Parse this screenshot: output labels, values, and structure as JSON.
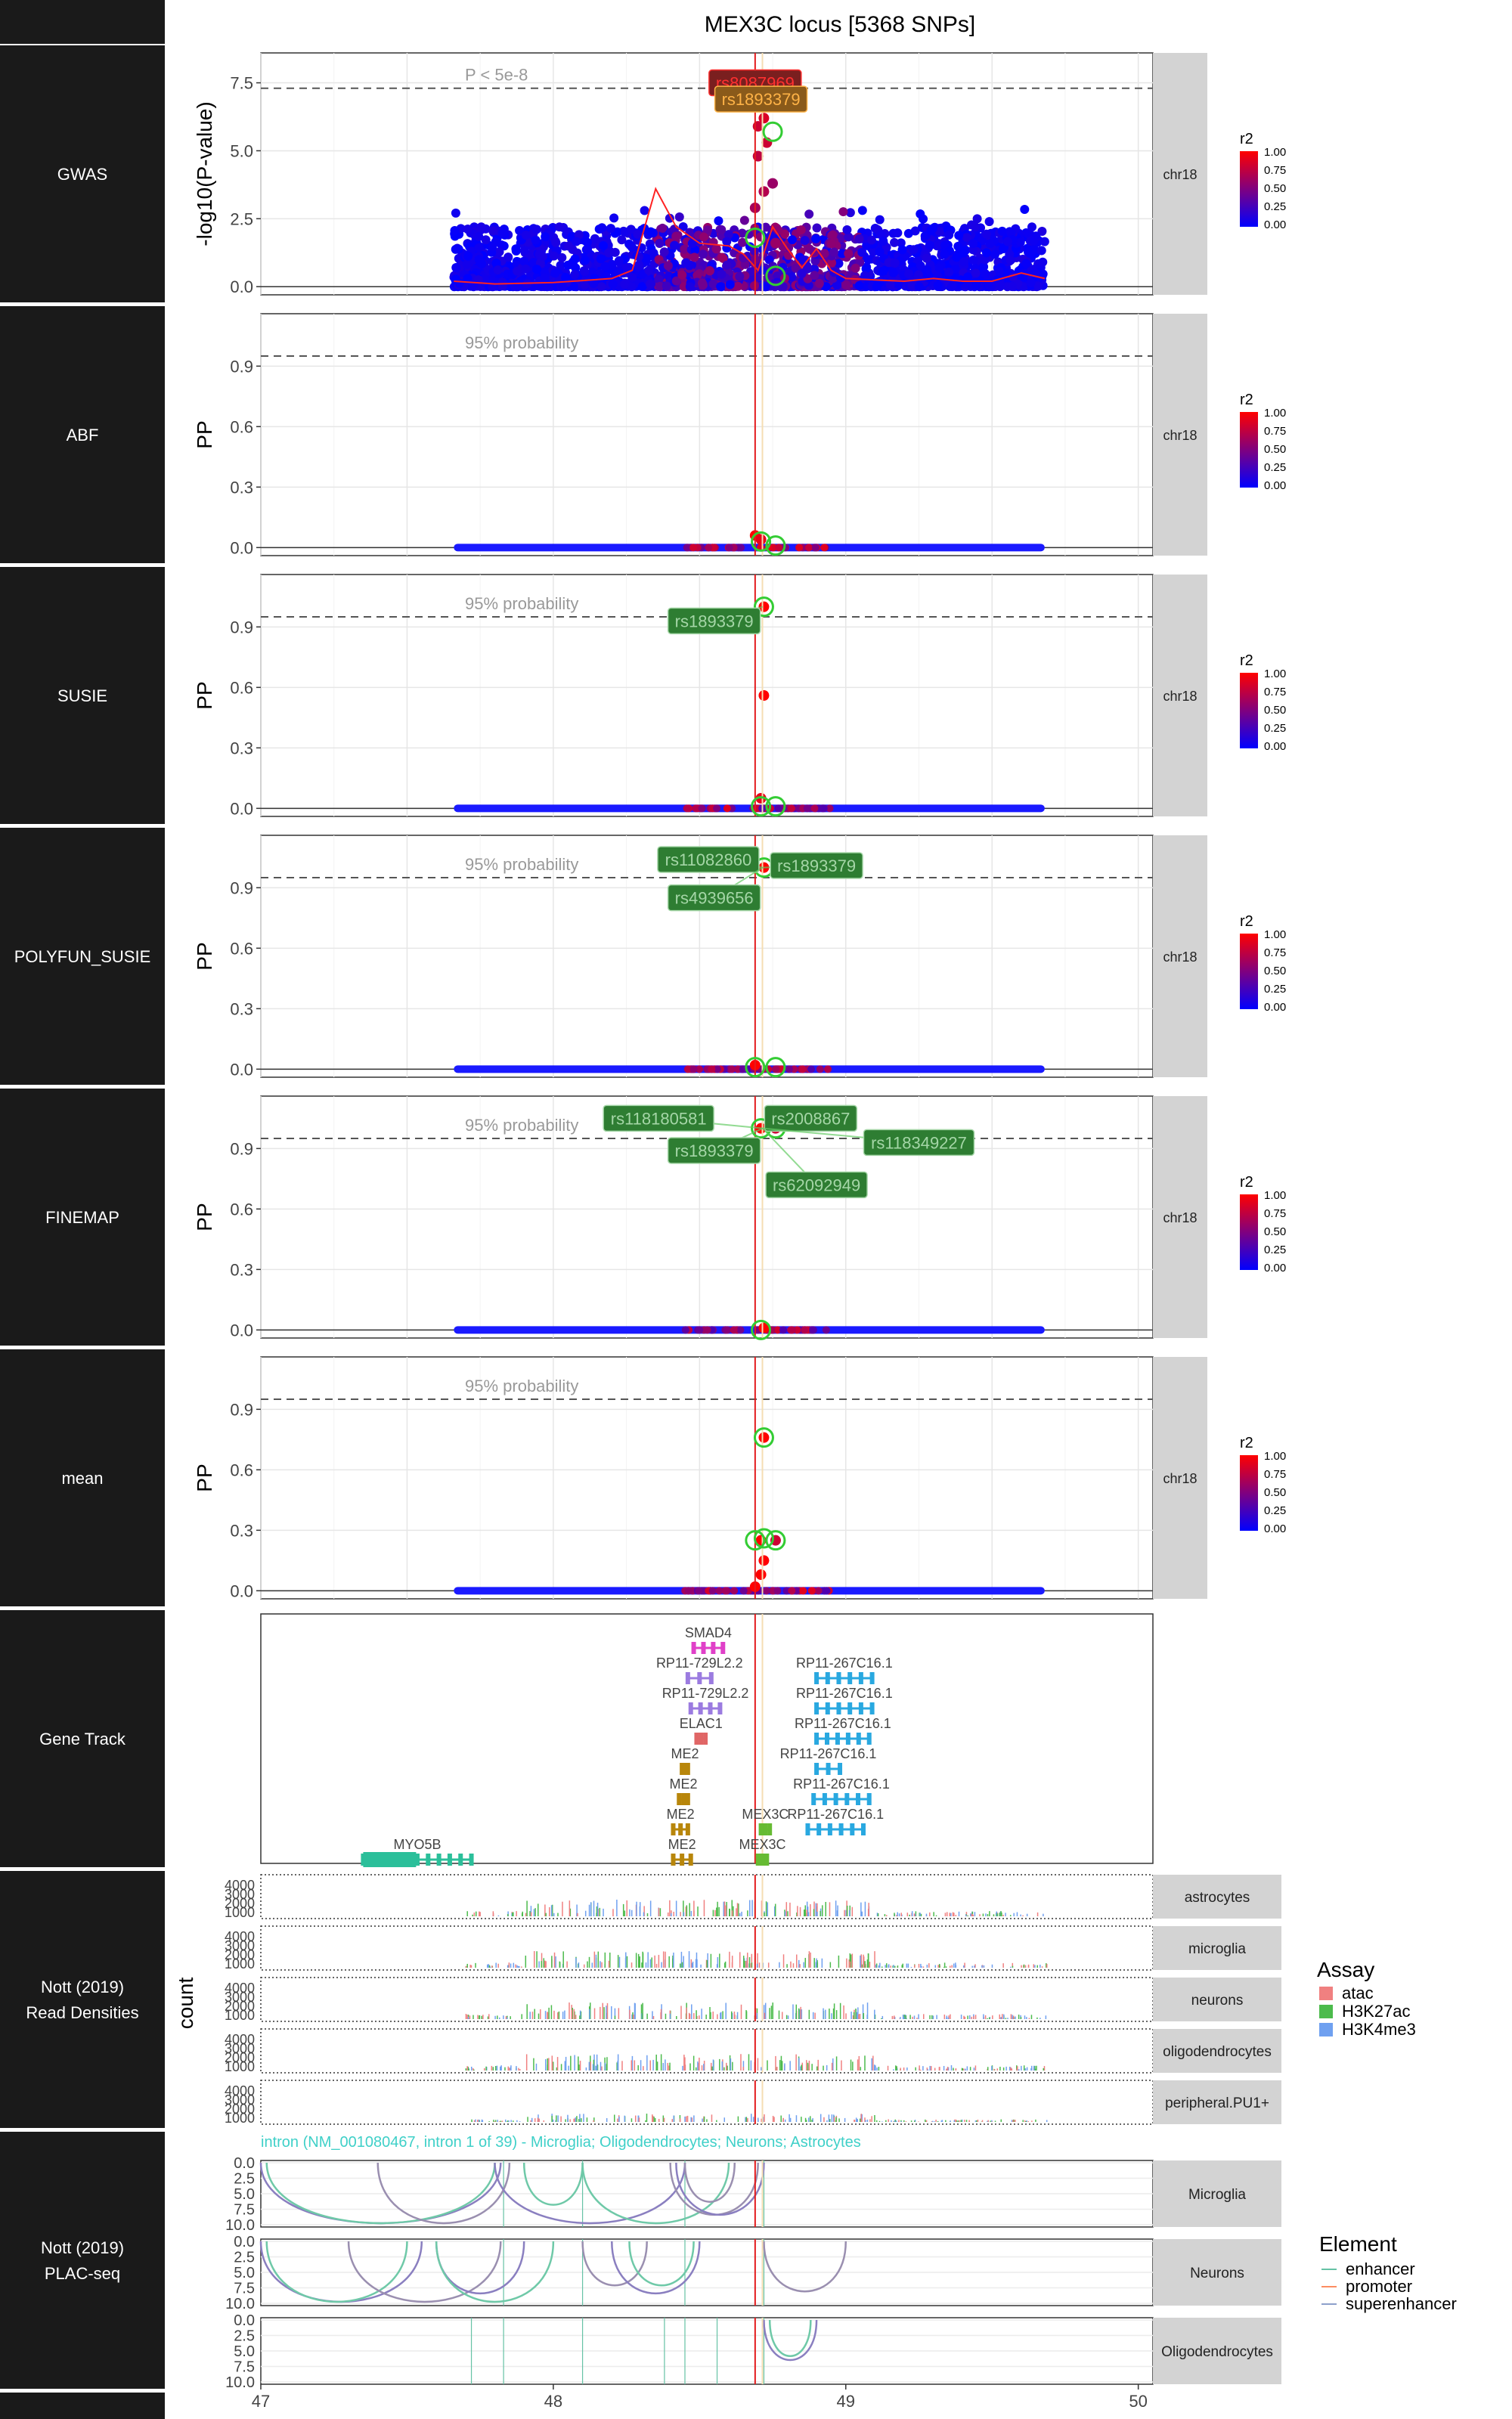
{
  "title": "MEX3C locus [5368 SNPs]",
  "colors": {
    "row_label_bg": "#1a1a1a",
    "row_label_text": "#ffffff",
    "strip_bg": "#d3d3d3",
    "lead_line": "#e31a1c",
    "consensus_line": "#f5deb3",
    "snp_low": "#0000ff",
    "snp_high": "#ff0000",
    "label_fill": "#2e7d32",
    "label_text": "#a5d6a7",
    "circle": "#33cc33"
  },
  "rows": [
    {
      "id": "gwas",
      "label": "GWAS"
    },
    {
      "id": "abf",
      "label": "ABF"
    },
    {
      "id": "susie",
      "label": "SUSIE"
    },
    {
      "id": "polyfun",
      "label": "POLYFUN_SUSIE"
    },
    {
      "id": "finemap",
      "label": "FINEMAP"
    },
    {
      "id": "mean",
      "label": "mean"
    },
    {
      "id": "genes",
      "label": "Gene Track"
    },
    {
      "id": "reads",
      "label": "Nott (2019)\nRead Densities"
    },
    {
      "id": "plac",
      "label": "Nott (2019)\nPLAC-seq"
    }
  ],
  "chart_data": [
    {
      "type": "scatter",
      "panel": "GWAS",
      "ylabel": "-log10(P-value)",
      "strip": "chr18",
      "yticks": [
        "0.0",
        "2.5",
        "5.0",
        "7.5"
      ],
      "ylim": [
        -0.3,
        8.6
      ],
      "threshold": {
        "y": 7.3,
        "label": "P < 5e-8"
      },
      "labels": [
        {
          "text": "rs8087969",
          "x": 48.69,
          "y": 7.5,
          "color": "red"
        },
        {
          "text": "rs1893379",
          "x": 48.71,
          "y": 6.9,
          "color": "orange"
        }
      ],
      "highlight_points": [
        {
          "x": 48.69,
          "y": 7.4,
          "r2": 1.0
        },
        {
          "x": 48.71,
          "y": 7.0,
          "r2": 0.95
        },
        {
          "x": 48.7,
          "y": 6.8,
          "r2": 0.9
        },
        {
          "x": 48.72,
          "y": 6.2,
          "r2": 0.85
        },
        {
          "x": 48.7,
          "y": 5.9,
          "r2": 0.8
        },
        {
          "x": 48.73,
          "y": 5.3,
          "r2": 0.8
        },
        {
          "x": 48.7,
          "y": 4.8,
          "r2": 0.75
        },
        {
          "x": 48.75,
          "y": 3.8,
          "r2": 0.6
        },
        {
          "x": 48.72,
          "y": 3.5,
          "r2": 0.7
        },
        {
          "x": 48.69,
          "y": 2.9,
          "r2": 0.65
        },
        {
          "x": 48.76,
          "y": 1.6,
          "r2": 0.6
        }
      ],
      "circled": [
        {
          "x": 48.71,
          "y": 7.5
        },
        {
          "x": 48.75,
          "y": 5.7
        },
        {
          "x": 48.69,
          "y": 1.8
        },
        {
          "x": 48.76,
          "y": 0.4
        }
      ],
      "legend": {
        "title": "r2",
        "ticks": [
          "1.00",
          "0.75",
          "0.50",
          "0.25",
          "0.00"
        ]
      }
    },
    {
      "type": "scatter",
      "panel": "ABF",
      "ylabel": "PP",
      "strip": "chr18",
      "yticks": [
        "0.0",
        "0.3",
        "0.6",
        "0.9"
      ],
      "ylim": [
        -0.04,
        1.16
      ],
      "threshold": {
        "y": 0.95,
        "label": "95% probability"
      },
      "labels": [],
      "highlight_points": [
        {
          "x": 48.69,
          "y": 0.06,
          "r2": 1.0
        },
        {
          "x": 48.71,
          "y": 0.04,
          "r2": 0.9
        }
      ],
      "circled": [
        {
          "x": 48.71,
          "y": 0.03
        },
        {
          "x": 48.76,
          "y": 0.01
        }
      ],
      "legend": {
        "title": "r2",
        "ticks": [
          "1.00",
          "0.75",
          "0.50",
          "0.25",
          "0.00"
        ]
      }
    },
    {
      "type": "scatter",
      "panel": "SUSIE",
      "ylabel": "PP",
      "strip": "chr18",
      "yticks": [
        "0.0",
        "0.3",
        "0.6",
        "0.9"
      ],
      "ylim": [
        -0.04,
        1.16
      ],
      "threshold": {
        "y": 0.95,
        "label": "95% probability"
      },
      "labels": [
        {
          "text": "rs1893379",
          "x": 48.55,
          "y": 0.93,
          "color": "green"
        }
      ],
      "highlight_points": [
        {
          "x": 48.72,
          "y": 1.0,
          "r2": 1.0
        },
        {
          "x": 48.72,
          "y": 0.56,
          "r2": 1.0
        },
        {
          "x": 48.71,
          "y": 0.05,
          "r2": 0.9
        }
      ],
      "circled": [
        {
          "x": 48.72,
          "y": 1.0
        },
        {
          "x": 48.71,
          "y": 0.01
        },
        {
          "x": 48.76,
          "y": 0.01
        }
      ],
      "legend": {
        "title": "r2",
        "ticks": [
          "1.00",
          "0.75",
          "0.50",
          "0.25",
          "0.00"
        ]
      }
    },
    {
      "type": "scatter",
      "panel": "POLYFUN_SUSIE",
      "ylabel": "PP",
      "strip": "chr18",
      "yticks": [
        "0.0",
        "0.3",
        "0.6",
        "0.9"
      ],
      "ylim": [
        -0.04,
        1.16
      ],
      "threshold": {
        "y": 0.95,
        "label": "95% probability"
      },
      "labels": [
        {
          "text": "rs11082860",
          "x": 48.53,
          "y": 1.04,
          "color": "green"
        },
        {
          "text": "rs1893379",
          "x": 48.9,
          "y": 1.01,
          "color": "green"
        },
        {
          "text": "rs4939656",
          "x": 48.55,
          "y": 0.85,
          "color": "green"
        }
      ],
      "highlight_points": [
        {
          "x": 48.72,
          "y": 1.0,
          "r2": 1.0
        },
        {
          "x": 48.69,
          "y": 0.02,
          "r2": 1.0
        }
      ],
      "circled": [
        {
          "x": 48.72,
          "y": 1.0
        },
        {
          "x": 48.69,
          "y": 0.01
        },
        {
          "x": 48.76,
          "y": 0.01
        }
      ],
      "legend": {
        "title": "r2",
        "ticks": [
          "1.00",
          "0.75",
          "0.50",
          "0.25",
          "0.00"
        ]
      }
    },
    {
      "type": "scatter",
      "panel": "FINEMAP",
      "ylabel": "PP",
      "strip": "chr18",
      "yticks": [
        "0.0",
        "0.3",
        "0.6",
        "0.9"
      ],
      "ylim": [
        -0.04,
        1.16
      ],
      "threshold": {
        "y": 0.95,
        "label": "95% probability"
      },
      "labels": [
        {
          "text": "rs118180581",
          "x": 48.36,
          "y": 1.05,
          "color": "green"
        },
        {
          "text": "rs2008867",
          "x": 48.88,
          "y": 1.05,
          "color": "green"
        },
        {
          "text": "rs118349227",
          "x": 49.25,
          "y": 0.93,
          "color": "green"
        },
        {
          "text": "rs1893379",
          "x": 48.55,
          "y": 0.89,
          "color": "green"
        },
        {
          "text": "rs62092949",
          "x": 48.9,
          "y": 0.72,
          "color": "green"
        }
      ],
      "highlight_points": [
        {
          "x": 48.71,
          "y": 1.0,
          "r2": 1.0
        },
        {
          "x": 48.76,
          "y": 1.0,
          "r2": 0.8
        },
        {
          "x": 48.72,
          "y": 0.01,
          "r2": 1.0
        }
      ],
      "circled": [
        {
          "x": 48.71,
          "y": 1.0
        },
        {
          "x": 48.76,
          "y": 1.0
        },
        {
          "x": 48.71,
          "y": 0.0
        }
      ],
      "legend": {
        "title": "r2",
        "ticks": [
          "1.00",
          "0.75",
          "0.50",
          "0.25",
          "0.00"
        ]
      }
    },
    {
      "type": "scatter",
      "panel": "mean",
      "ylabel": "PP",
      "strip": "chr18",
      "yticks": [
        "0.0",
        "0.3",
        "0.6",
        "0.9"
      ],
      "ylim": [
        -0.04,
        1.16
      ],
      "threshold": {
        "y": 0.95,
        "label": "95% probability"
      },
      "labels": [],
      "highlight_points": [
        {
          "x": 48.72,
          "y": 0.76,
          "r2": 1.0
        },
        {
          "x": 48.71,
          "y": 0.25,
          "r2": 1.0
        },
        {
          "x": 48.76,
          "y": 0.25,
          "r2": 0.8
        },
        {
          "x": 48.72,
          "y": 0.15,
          "r2": 1.0
        },
        {
          "x": 48.71,
          "y": 0.08,
          "r2": 1.0
        },
        {
          "x": 48.69,
          "y": 0.02,
          "r2": 1.0
        }
      ],
      "circled": [
        {
          "x": 48.72,
          "y": 0.76
        },
        {
          "x": 48.69,
          "y": 0.25
        },
        {
          "x": 48.72,
          "y": 0.26
        },
        {
          "x": 48.76,
          "y": 0.25
        }
      ],
      "legend": {
        "title": "r2",
        "ticks": [
          "1.00",
          "0.75",
          "0.50",
          "0.25",
          "0.00"
        ]
      }
    },
    {
      "type": "table",
      "panel": "Gene Track",
      "genes": [
        {
          "name": "SMAD4",
          "start": 48.48,
          "end": 48.58,
          "level": 0,
          "color": "#e040c8"
        },
        {
          "name": "RP11-729L2.2",
          "start": 48.46,
          "end": 48.54,
          "level": 1,
          "color": "#9b7be0"
        },
        {
          "name": "RP11-729L2.2",
          "start": 48.47,
          "end": 48.57,
          "level": 2,
          "color": "#9b7be0"
        },
        {
          "name": "ELAC1",
          "start": 48.49,
          "end": 48.52,
          "level": 3,
          "color": "#e06666"
        },
        {
          "name": "ME2",
          "start": 48.44,
          "end": 48.46,
          "level": 4,
          "color": "#b8860b"
        },
        {
          "name": "ME2",
          "start": 48.43,
          "end": 48.46,
          "level": 5,
          "color": "#b8860b"
        },
        {
          "name": "ME2",
          "start": 48.41,
          "end": 48.46,
          "level": 6,
          "color": "#b8860b"
        },
        {
          "name": "ME2",
          "start": 48.41,
          "end": 48.47,
          "level": 7,
          "color": "#b8860b"
        },
        {
          "name": "MEX3C",
          "start": 48.71,
          "end": 48.74,
          "level": 6,
          "color": "#66bb33"
        },
        {
          "name": "MEX3C",
          "start": 48.7,
          "end": 48.73,
          "level": 7,
          "color": "#66bb33"
        },
        {
          "name": "MYO5B",
          "start": 47.35,
          "end": 47.72,
          "level": 7,
          "color": "#2bbf9a"
        },
        {
          "name": "RP11-267C16.1",
          "start": 48.9,
          "end": 49.09,
          "level": 1,
          "color": "#29a8e0"
        },
        {
          "name": "RP11-267C16.1",
          "start": 48.9,
          "end": 49.09,
          "level": 2,
          "color": "#29a8e0"
        },
        {
          "name": "RP11-267C16.1",
          "start": 48.9,
          "end": 49.08,
          "level": 3,
          "color": "#29a8e0"
        },
        {
          "name": "RP11-267C16.1",
          "start": 48.9,
          "end": 48.98,
          "level": 4,
          "color": "#29a8e0"
        },
        {
          "name": "RP11-267C16.1",
          "start": 48.89,
          "end": 49.08,
          "level": 5,
          "color": "#29a8e0"
        },
        {
          "name": "RP11-267C16.1",
          "start": 48.87,
          "end": 49.06,
          "level": 6,
          "color": "#29a8e0"
        }
      ]
    },
    {
      "type": "area",
      "panel": "Nott (2019) Read Densities",
      "ylabel": "count",
      "yticks": [
        "1000",
        "2000",
        "3000",
        "4000"
      ],
      "facets": [
        "astrocytes",
        "microglia",
        "neurons",
        "oligodendrocytes",
        "peripheral.PU1+"
      ],
      "legend": {
        "title": "Assay",
        "items": [
          {
            "label": "atac",
            "color": "#f08080"
          },
          {
            "label": "H3K27ac",
            "color": "#4cbb4c"
          },
          {
            "label": "H3K4me3",
            "color": "#6fa0f0"
          }
        ]
      }
    },
    {
      "type": "line",
      "panel": "Nott (2019) PLAC-seq",
      "annotation": "intron (NM_001080467, intron 1 of 39) - Microglia; Oligodendrocytes; Neurons; Astrocytes",
      "yticks": [
        "0.0",
        "2.5",
        "5.0",
        "7.5",
        "10.0"
      ],
      "facets": [
        "Microglia",
        "Neurons",
        "Oligodendrocytes"
      ],
      "xticks": [
        "47",
        "48",
        "49",
        "50"
      ],
      "xlim": [
        47.0,
        50.05
      ],
      "legend": {
        "title": "Element",
        "items": [
          {
            "label": "enhancer",
            "color": "#66c2a5"
          },
          {
            "label": "promoter",
            "color": "#fc8d62"
          },
          {
            "label": "superenhancer",
            "color": "#8da0cb"
          }
        ]
      }
    }
  ]
}
